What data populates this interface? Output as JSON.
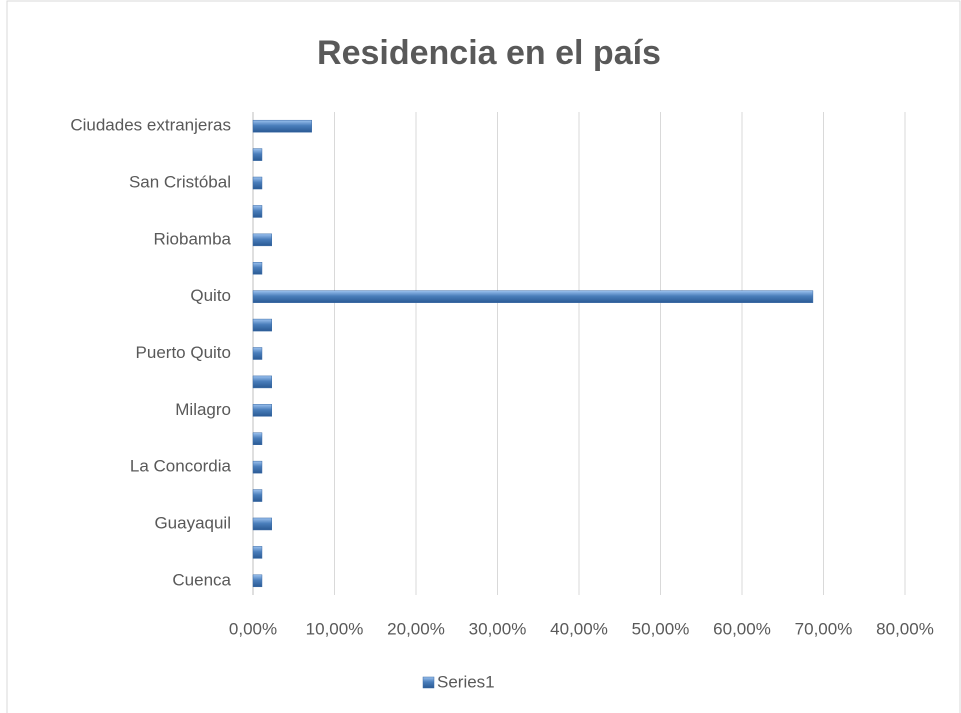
{
  "chart_data": {
    "type": "bar",
    "orientation": "horizontal",
    "title": "Residencia en el país",
    "categories": [
      "Cuenca",
      null,
      "Guayaquil",
      null,
      "La Concordia",
      null,
      "Milagro",
      null,
      "Puerto Quito",
      null,
      "Quito",
      null,
      "Riobamba",
      null,
      "San Cristóbal",
      null,
      "Ciudades extranjeras"
    ],
    "series": [
      {
        "name": "Series1",
        "color": "#4a7ebb",
        "values": [
          1.1,
          1.1,
          2.3,
          1.1,
          1.1,
          1.1,
          2.3,
          2.3,
          1.1,
          2.3,
          68.7,
          1.1,
          2.3,
          1.1,
          1.1,
          1.1,
          7.2
        ]
      }
    ],
    "xlim": [
      0,
      80
    ],
    "xticks": [
      {
        "value": 0,
        "label": "0,00%"
      },
      {
        "value": 10,
        "label": "10,00%"
      },
      {
        "value": 20,
        "label": "20,00%"
      },
      {
        "value": 30,
        "label": "30,00%"
      },
      {
        "value": 40,
        "label": "40,00%"
      },
      {
        "value": 50,
        "label": "50,00%"
      },
      {
        "value": 60,
        "label": "60,00%"
      },
      {
        "value": 70,
        "label": "70,00%"
      },
      {
        "value": 80,
        "label": "80,00%"
      }
    ],
    "grid": true,
    "legend": "bottom"
  }
}
